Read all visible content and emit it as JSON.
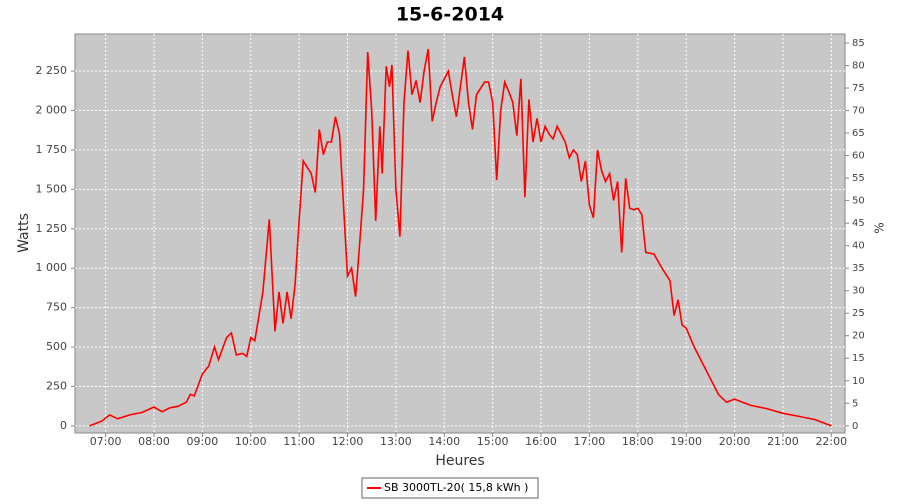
{
  "chart_data": {
    "type": "line",
    "title": "15-6-2014",
    "x_label": "Heures",
    "y_label": "Watts",
    "y2_label": "%",
    "x": [
      "06:40",
      "06:55",
      "07:05",
      "07:15",
      "07:30",
      "07:45",
      "08:00",
      "08:10",
      "08:20",
      "08:30",
      "08:40",
      "08:45",
      "08:50",
      "09:00",
      "09:08",
      "09:15",
      "09:20",
      "09:30",
      "09:36",
      "09:42",
      "09:50",
      "09:55",
      "10:00",
      "10:05",
      "10:15",
      "10:23",
      "10:30",
      "10:35",
      "10:40",
      "10:45",
      "10:50",
      "10:55",
      "11:00",
      "11:05",
      "11:15",
      "11:20",
      "11:25",
      "11:30",
      "11:35",
      "11:40",
      "11:45",
      "11:50",
      "11:55",
      "12:00",
      "12:05",
      "12:10",
      "12:15",
      "12:20",
      "12:25",
      "12:30",
      "12:35",
      "12:40",
      "12:43",
      "12:48",
      "12:52",
      "12:55",
      "13:00",
      "13:05",
      "13:10",
      "13:15",
      "13:20",
      "13:25",
      "13:30",
      "13:35",
      "13:40",
      "13:45",
      "13:50",
      "13:55",
      "14:00",
      "14:05",
      "14:10",
      "14:15",
      "14:20",
      "14:25",
      "14:30",
      "14:35",
      "14:40",
      "14:50",
      "14:55",
      "15:00",
      "15:05",
      "15:10",
      "15:15",
      "15:20",
      "15:25",
      "15:30",
      "15:35",
      "15:40",
      "15:45",
      "15:50",
      "15:55",
      "16:00",
      "16:05",
      "16:10",
      "16:15",
      "16:20",
      "16:30",
      "16:35",
      "16:40",
      "16:45",
      "16:50",
      "16:55",
      "17:00",
      "17:05",
      "17:10",
      "17:15",
      "17:20",
      "17:25",
      "17:30",
      "17:35",
      "17:40",
      "17:45",
      "17:50",
      "17:55",
      "18:00",
      "18:05",
      "18:10",
      "18:20",
      "18:30",
      "18:40",
      "18:45",
      "18:50",
      "18:55",
      "19:00",
      "19:10",
      "19:20",
      "19:30",
      "19:40",
      "19:50",
      "20:00",
      "20:20",
      "20:40",
      "21:00",
      "21:20",
      "21:40",
      "22:00"
    ],
    "series": [
      {
        "name": "SB 3000TL-20( 15,8 kWh )",
        "color": "#ff0000",
        "values": [
          0,
          30,
          70,
          45,
          70,
          85,
          120,
          90,
          115,
          125,
          150,
          200,
          190,
          330,
          380,
          500,
          420,
          560,
          590,
          450,
          460,
          440,
          560,
          540,
          850,
          1310,
          600,
          850,
          650,
          850,
          680,
          900,
          1300,
          1680,
          1600,
          1480,
          1880,
          1720,
          1800,
          1800,
          1960,
          1850,
          1400,
          950,
          1000,
          820,
          1150,
          1500,
          2370,
          2000,
          1300,
          1900,
          1600,
          2280,
          2150,
          2290,
          1500,
          1200,
          2050,
          2380,
          2100,
          2190,
          2050,
          2250,
          2390,
          1930,
          2050,
          2150,
          2200,
          2250,
          2100,
          1960,
          2150,
          2340,
          2050,
          1880,
          2100,
          2180,
          2180,
          2050,
          1560,
          2000,
          2180,
          2120,
          2050,
          1840,
          2200,
          1450,
          2070,
          1800,
          1950,
          1800,
          1900,
          1850,
          1820,
          1900,
          1800,
          1700,
          1750,
          1720,
          1550,
          1680,
          1400,
          1320,
          1750,
          1620,
          1550,
          1600,
          1430,
          1550,
          1100,
          1570,
          1380,
          1370,
          1380,
          1340,
          1100,
          1090,
          1000,
          920,
          700,
          800,
          640,
          620,
          500,
          400,
          300,
          200,
          150,
          170,
          130,
          110,
          80,
          60,
          40,
          0
        ]
      }
    ],
    "xlim": [
      "06:22",
      "22:17"
    ],
    "xticks": [
      "07:00",
      "08:00",
      "09:00",
      "10:00",
      "11:00",
      "12:00",
      "13:00",
      "14:00",
      "15:00",
      "16:00",
      "17:00",
      "18:00",
      "19:00",
      "20:00",
      "21:00",
      "22:00"
    ],
    "ylim": [
      -45,
      2485
    ],
    "yticks": [
      0,
      250,
      500,
      750,
      {
        "value": 1000,
        "label": "1 000"
      },
      {
        "value": 1250,
        "label": "1 250"
      },
      {
        "value": 1500,
        "label": "1 500"
      },
      {
        "value": 1750,
        "label": "1 750"
      },
      {
        "value": 2000,
        "label": "2 000"
      },
      {
        "value": 2250,
        "label": "2 250"
      }
    ],
    "y2lim": [
      -1.6,
      87
    ],
    "y2ticks": [
      0,
      5,
      10,
      15,
      20,
      25,
      30,
      35,
      40,
      45,
      50,
      55,
      60,
      65,
      70,
      75,
      80,
      85
    ],
    "grid": true
  }
}
